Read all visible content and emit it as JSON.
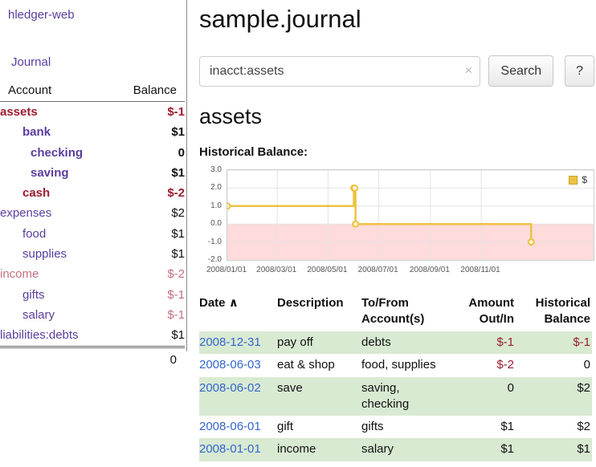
{
  "colors": {
    "link": "#5b3d9e",
    "date_link": "#3366cc",
    "negative": "#9b1c31",
    "negative_soft": "#c4707e",
    "row_alt": "#d9ead3"
  },
  "sidebar": {
    "brand": "hledger-web",
    "journal_link": "Journal",
    "header": {
      "account": "Account",
      "balance": "Balance"
    },
    "accounts": [
      {
        "name": "assets",
        "balance": "$-1",
        "indent": 0,
        "bold": true,
        "name_style": "neg",
        "bal_style": "neg"
      },
      {
        "name": "bank",
        "balance": "$1",
        "indent": 1,
        "bold": true,
        "name_style": "link",
        "bal_style": "plain"
      },
      {
        "name": "checking",
        "balance": "0",
        "indent": 2,
        "bold": true,
        "name_style": "link",
        "bal_style": "plain"
      },
      {
        "name": "saving",
        "balance": "$1",
        "indent": 2,
        "bold": true,
        "name_style": "link",
        "bal_style": "plain"
      },
      {
        "name": "cash",
        "balance": "$-2",
        "indent": 1,
        "bold": true,
        "name_style": "neg",
        "bal_style": "neg"
      },
      {
        "name": "expenses",
        "balance": "$2",
        "indent": 0,
        "bold": false,
        "name_style": "link",
        "bal_style": "plain"
      },
      {
        "name": "food",
        "balance": "$1",
        "indent": 1,
        "bold": false,
        "name_style": "link",
        "bal_style": "plain"
      },
      {
        "name": "supplies",
        "balance": "$1",
        "indent": 1,
        "bold": false,
        "name_style": "link",
        "bal_style": "plain"
      },
      {
        "name": "income",
        "balance": "$-2",
        "indent": 0,
        "bold": false,
        "name_style": "neg-soft",
        "bal_style": "neg-soft"
      },
      {
        "name": "gifts",
        "balance": "$-1",
        "indent": 1,
        "bold": false,
        "name_style": "link",
        "bal_style": "neg-soft"
      },
      {
        "name": "salary",
        "balance": "$-1",
        "indent": 1,
        "bold": false,
        "name_style": "link",
        "bal_style": "neg-soft"
      },
      {
        "name": "liabilities:debts",
        "balance": "$1",
        "indent": 0,
        "bold": false,
        "name_style": "link",
        "bal_style": "plain"
      }
    ],
    "total": "0"
  },
  "main": {
    "title": "sample.journal",
    "search": {
      "value": "inacct:assets",
      "clear_icon": "×",
      "button_label": "Search",
      "help_label": "?"
    },
    "account_heading": "assets",
    "chart_label": "Historical Balance:"
  },
  "chart_data": {
    "type": "line",
    "step": true,
    "title": "Historical Balance:",
    "xlabel": "",
    "ylabel": "",
    "ylim": [
      -2,
      3
    ],
    "yticks": [
      3,
      2,
      1,
      0,
      -1,
      -2
    ],
    "xlim": [
      "2008-01-01",
      "2009-03-16"
    ],
    "xticks": [
      "2008/01/01",
      "2008/03/01",
      "2008/05/01",
      "2008/07/01",
      "2008/09/01",
      "2008/11/01"
    ],
    "grid": true,
    "legend_position": "top-right",
    "line_color": "#edc240",
    "marker_fill": "#fdf3cd",
    "negative_region_color": "#ffdbdb",
    "series": [
      {
        "name": "$",
        "points": [
          {
            "date": "2008-01-01",
            "value": 1
          },
          {
            "date": "2008-06-01",
            "value": 2
          },
          {
            "date": "2008-06-02",
            "value": 2
          },
          {
            "date": "2008-06-03",
            "value": 0
          },
          {
            "date": "2008-12-31",
            "value": -1
          }
        ]
      }
    ]
  },
  "register": {
    "headers": [
      "Date",
      "Description",
      "To/From Account(s)",
      "Amount Out/In",
      "Historical Balance"
    ],
    "sort_indicator": "∧",
    "rows": [
      {
        "date": "2008-12-31",
        "description": "pay off",
        "accounts": "debts",
        "amount": "$-1",
        "balance": "$-1"
      },
      {
        "date": "2008-06-03",
        "description": "eat & shop",
        "accounts": "food, supplies",
        "amount": "$-2",
        "balance": "0"
      },
      {
        "date": "2008-06-02",
        "description": "save",
        "accounts": "saving, checking",
        "amount": "0",
        "balance": "$2"
      },
      {
        "date": "2008-06-01",
        "description": "gift",
        "accounts": "gifts",
        "amount": "$1",
        "balance": "$2"
      },
      {
        "date": "2008-01-01",
        "description": "income",
        "accounts": "salary",
        "amount": "$1",
        "balance": "$1"
      }
    ]
  }
}
